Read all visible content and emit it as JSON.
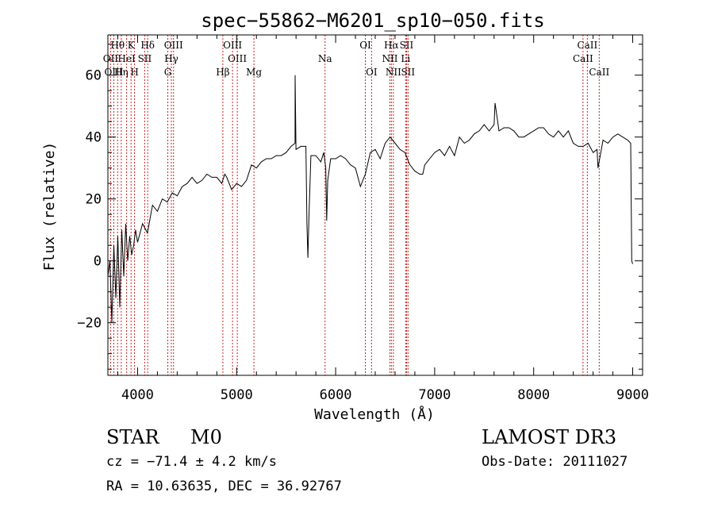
{
  "chart_data": {
    "type": "line",
    "title": "spec−55862−M6201_sp10−050.fits",
    "xlabel": "Wavelength (Å)",
    "ylabel": "Flux (relative)",
    "xlim": [
      3700,
      9100
    ],
    "ylim": [
      -37,
      73
    ],
    "xticks": [
      {
        "v": 4000,
        "label": "4000"
      },
      {
        "v": 5000,
        "label": "5000"
      },
      {
        "v": 6000,
        "label": "6000"
      },
      {
        "v": 7000,
        "label": "7000"
      },
      {
        "v": 8000,
        "label": "8000"
      },
      {
        "v": 9000,
        "label": "9000"
      }
    ],
    "yticks": [
      {
        "v": -20,
        "label": "−20"
      },
      {
        "v": 0,
        "label": "0"
      },
      {
        "v": 20,
        "label": "20"
      },
      {
        "v": 40,
        "label": "40"
      },
      {
        "v": 60,
        "label": "60"
      }
    ],
    "series": [
      {
        "name": "flux",
        "x": [
          3700,
          3720,
          3740,
          3760,
          3780,
          3800,
          3820,
          3840,
          3860,
          3880,
          3900,
          3920,
          3940,
          3960,
          3980,
          4000,
          4050,
          4100,
          4150,
          4200,
          4250,
          4300,
          4350,
          4400,
          4450,
          4500,
          4550,
          4600,
          4650,
          4700,
          4750,
          4800,
          4850,
          4880,
          4900,
          4950,
          5000,
          5050,
          5100,
          5150,
          5200,
          5250,
          5300,
          5350,
          5400,
          5450,
          5500,
          5550,
          5590,
          5591,
          5600,
          5650,
          5700,
          5710,
          5720,
          5730,
          5750,
          5800,
          5850,
          5880,
          5900,
          5910,
          5920,
          5950,
          6000,
          6050,
          6100,
          6150,
          6200,
          6250,
          6300,
          6350,
          6400,
          6450,
          6500,
          6550,
          6600,
          6650,
          6700,
          6750,
          6800,
          6850,
          6880,
          6900,
          6950,
          7000,
          7050,
          7100,
          7150,
          7200,
          7250,
          7300,
          7350,
          7400,
          7450,
          7500,
          7550,
          7600,
          7610,
          7650,
          7700,
          7750,
          7800,
          7850,
          7900,
          7950,
          8000,
          8050,
          8100,
          8150,
          8200,
          8250,
          8300,
          8350,
          8400,
          8450,
          8500,
          8550,
          8600,
          8640,
          8650,
          8700,
          8750,
          8800,
          8850,
          8900,
          8950,
          8980,
          8990,
          9000
        ],
        "y": [
          -5,
          0,
          -20,
          5,
          -12,
          8,
          -15,
          10,
          -5,
          12,
          0,
          8,
          2,
          5,
          10,
          6,
          12,
          9,
          18,
          16,
          20,
          19,
          22,
          21,
          24,
          25,
          27,
          25,
          26,
          28,
          27,
          27,
          25,
          28,
          27,
          23,
          25,
          24,
          26,
          31,
          30,
          32,
          33,
          33,
          34,
          34,
          35,
          37,
          38,
          60,
          36,
          37,
          37,
          12,
          1,
          14,
          34,
          34,
          32,
          35,
          30,
          13,
          26,
          33,
          33,
          34,
          33,
          31,
          30,
          24,
          28,
          35,
          36,
          33,
          38,
          40,
          38,
          36,
          35,
          31,
          29,
          28,
          28,
          31,
          33,
          35,
          36,
          34,
          37,
          34,
          40,
          38,
          39,
          41,
          42,
          44,
          42,
          44,
          51,
          42,
          43,
          43,
          42,
          40,
          40,
          41,
          42,
          43,
          43,
          41,
          40,
          42,
          40,
          42,
          38,
          37,
          37,
          38,
          35,
          36,
          30,
          39,
          38,
          40,
          41,
          40,
          39,
          38,
          0,
          -1
        ]
      }
    ],
    "lines": [
      {
        "label": "Hθ",
        "x": 3798,
        "row": 0
      },
      {
        "label": "OII",
        "x": 3727,
        "row": 1
      },
      {
        "label": "OIII",
        "x": 3760,
        "row": 2
      },
      {
        "label": "Hη",
        "x": 3835,
        "row": 2
      },
      {
        "label": "K",
        "x": 3934,
        "row": 0
      },
      {
        "label": "HeI",
        "x": 3889,
        "row": 1
      },
      {
        "label": "H",
        "x": 3969,
        "row": 2
      },
      {
        "label": "Hδ",
        "x": 4102,
        "row": 0
      },
      {
        "label": "SII",
        "x": 4072,
        "row": 1
      },
      {
        "label": "OIII",
        "x": 4363,
        "row": 0
      },
      {
        "label": "Hγ",
        "x": 4341,
        "row": 1
      },
      {
        "label": "G",
        "x": 4305,
        "row": 2
      },
      {
        "label": "OIII",
        "x": 4959,
        "row": 0
      },
      {
        "label": "OIII",
        "x": 5007,
        "row": 1
      },
      {
        "label": "Hβ",
        "x": 4861,
        "row": 2
      },
      {
        "label": "Mg",
        "x": 5175,
        "row": 2
      },
      {
        "label": "Na",
        "x": 5893,
        "row": 1
      },
      {
        "label": "OI",
        "x": 6300,
        "row": 0
      },
      {
        "label": "OI",
        "x": 6363,
        "row": 2
      },
      {
        "label": "Hα",
        "x": 6563,
        "row": 0
      },
      {
        "label": "NII",
        "x": 6548,
        "row": 1
      },
      {
        "label": "NII",
        "x": 6583,
        "row": 2
      },
      {
        "label": "SII",
        "x": 6716,
        "row": 0
      },
      {
        "label": "Li",
        "x": 6707,
        "row": 1
      },
      {
        "label": "SII",
        "x": 6731,
        "row": 2
      },
      {
        "label": "CaII",
        "x": 8542,
        "row": 0
      },
      {
        "label": "CaII",
        "x": 8498,
        "row": 1
      },
      {
        "label": "CaII",
        "x": 8662,
        "row": 2
      }
    ]
  },
  "info": {
    "class_label": "STAR",
    "subclass": "M0",
    "survey": "LAMOST DR3",
    "cz": "cz = −71.4 ± 4.2 km/s",
    "obs_date": "Obs-Date: 20111027",
    "coords": "RA =  10.63635, DEC =  36.92767"
  },
  "colors": {
    "line": "#000000",
    "marker": "#cc2222",
    "axis": "#000000"
  }
}
